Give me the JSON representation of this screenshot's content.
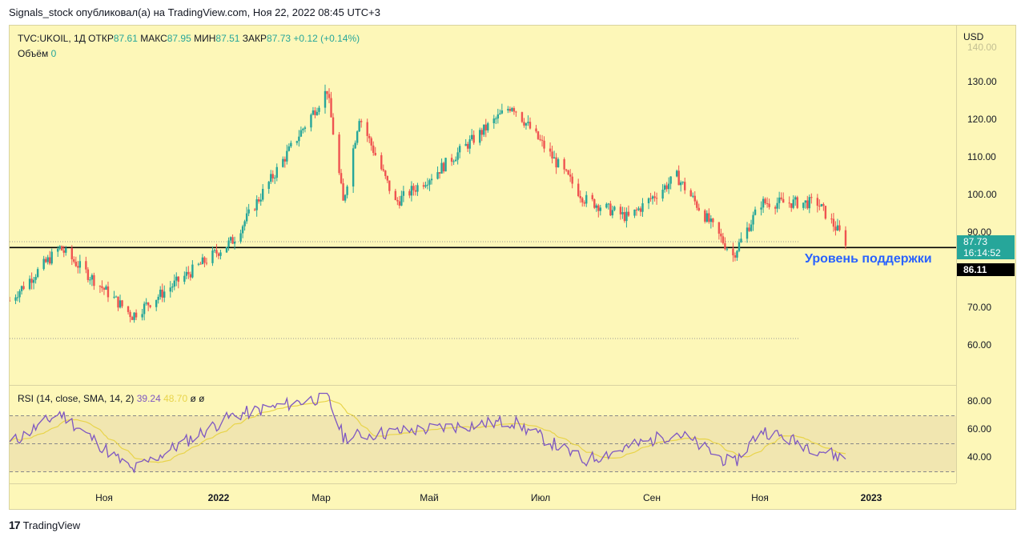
{
  "header": {
    "publish_text": "Signals_stock опубликовал(а) на TradingView.com, Ноя 22, 2022 08:45 UTC+3"
  },
  "legend": {
    "symbol": "TVC:UKOIL, 1Д",
    "open_label": "ОТКР",
    "open": "87.61",
    "high_label": "МАКС",
    "high": "87.95",
    "low_label": "МИН",
    "low": "87.51",
    "close_label": "ЗАКР",
    "close": "87.73",
    "change": "+0.12 (+0.14%)",
    "volume_label": "Объём",
    "volume": "0"
  },
  "rsi": {
    "label": "RSI (14, close, SMA, 14, 2)",
    "value": "39.24",
    "sma": "48.70",
    "extra1": "ø",
    "extra2": "ø"
  },
  "price_axis": {
    "currency": "USD",
    "ticks": [
      "140.00",
      "130.00",
      "120.00",
      "110.00",
      "100.00",
      "90.00",
      "70.00",
      "60.00"
    ]
  },
  "rsi_axis": {
    "ticks": [
      "80.00",
      "60.00",
      "40.00"
    ]
  },
  "time_axis": {
    "ticks": [
      {
        "label": "Ноя",
        "bold": false
      },
      {
        "label": "2022",
        "bold": true
      },
      {
        "label": "Мар",
        "bold": false
      },
      {
        "label": "Май",
        "bold": false
      },
      {
        "label": "Июл",
        "bold": false
      },
      {
        "label": "Сен",
        "bold": false
      },
      {
        "label": "Ноя",
        "bold": false
      },
      {
        "label": "2023",
        "bold": true
      }
    ]
  },
  "tags": {
    "last_price": "87.73",
    "countdown": "16:14:52",
    "support_price": "86.11"
  },
  "annotation": {
    "support_label": "Уровень поддержки"
  },
  "footer": {
    "brand": "TradingView",
    "logo_mark": "17"
  },
  "colors": {
    "up": "#26a69a",
    "down": "#ef5350",
    "rsi_line": "#7e57c2",
    "rsi_sma": "#e8d44a",
    "support_line": "#000000",
    "background": "#fdf7b8"
  },
  "chart_data": {
    "type": "candlestick",
    "symbol": "TVC:UKOIL",
    "interval": "1D",
    "x_range": [
      "2021-10-01",
      "2023-01-15"
    ],
    "y_range": [
      55,
      141
    ],
    "support_level": 86.11,
    "key_points": [
      {
        "date": "2021-10-01",
        "close": 72
      },
      {
        "date": "2021-10-26",
        "close": 86
      },
      {
        "date": "2021-12-01",
        "close": 68
      },
      {
        "date": "2022-01-20",
        "close": 88
      },
      {
        "date": "2022-03-08",
        "close": 128
      },
      {
        "date": "2022-03-16",
        "close": 98
      },
      {
        "date": "2022-03-24",
        "close": 121
      },
      {
        "date": "2022-04-11",
        "close": 98
      },
      {
        "date": "2022-05-01",
        "close": 106
      },
      {
        "date": "2022-06-08",
        "close": 124
      },
      {
        "date": "2022-07-14",
        "close": 99
      },
      {
        "date": "2022-08-05",
        "close": 94
      },
      {
        "date": "2022-08-29",
        "close": 105
      },
      {
        "date": "2022-09-26",
        "close": 84
      },
      {
        "date": "2022-10-10",
        "close": 98
      },
      {
        "date": "2022-11-07",
        "close": 98
      },
      {
        "date": "2022-11-21",
        "close": 87.73
      }
    ],
    "rsi_points": [
      {
        "date": "2021-10-01",
        "rsi": 50
      },
      {
        "date": "2021-10-26",
        "rsi": 72
      },
      {
        "date": "2021-12-01",
        "rsi": 31
      },
      {
        "date": "2022-01-20",
        "rsi": 70
      },
      {
        "date": "2022-03-08",
        "rsi": 84
      },
      {
        "date": "2022-03-16",
        "rsi": 55
      },
      {
        "date": "2022-06-08",
        "rsi": 66
      },
      {
        "date": "2022-07-14",
        "rsi": 38
      },
      {
        "date": "2022-08-29",
        "rsi": 58
      },
      {
        "date": "2022-09-26",
        "rsi": 35
      },
      {
        "date": "2022-10-10",
        "rsi": 60
      },
      {
        "date": "2022-11-21",
        "rsi": 39.24
      }
    ],
    "rsi_band": [
      30,
      70
    ],
    "rsi_mid": 50
  }
}
